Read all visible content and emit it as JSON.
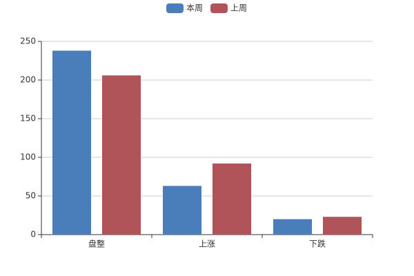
{
  "chart_data": {
    "type": "bar",
    "categories": [
      "盘整",
      "上涨",
      "下跌"
    ],
    "series": [
      {
        "name": "本周",
        "color": "#4a7ebb",
        "values": [
          238,
          63,
          20
        ]
      },
      {
        "name": "上周",
        "color": "#b0545a",
        "values": [
          206,
          92,
          23
        ]
      }
    ],
    "ylim": [
      0,
      250
    ],
    "yticks": [
      0,
      50,
      100,
      150,
      200,
      250
    ],
    "grid": true
  }
}
